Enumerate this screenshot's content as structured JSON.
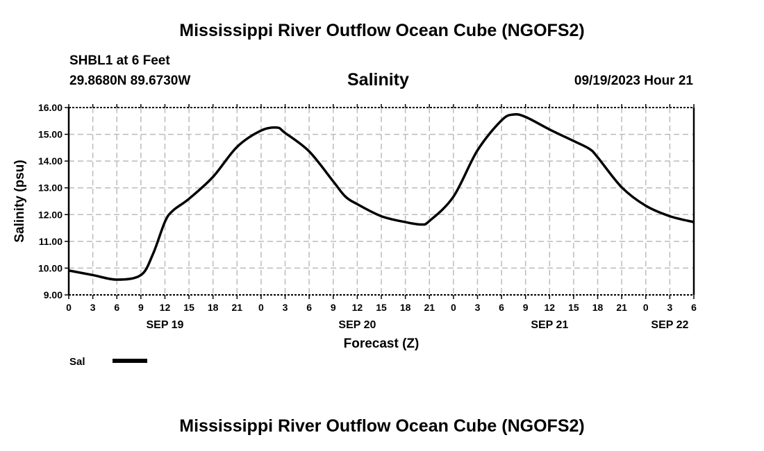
{
  "header": {
    "title": "Mississippi River Outflow Ocean Cube (NGOFS2)",
    "station": "SHBL1 at 6 Feet",
    "coords": "29.8680N  89.6730W",
    "subtitle": "Salinity",
    "datetime": "09/19/2023 Hour 21"
  },
  "footer": {
    "title": "Mississippi River Outflow Ocean Cube (NGOFS2)"
  },
  "chart_data": {
    "type": "line",
    "title": "Salinity",
    "xlabel": "Forecast (Z)",
    "ylabel": "Salinity (psu)",
    "ylim": [
      9,
      16
    ],
    "xlim": [
      0,
      78
    ],
    "yticks": [
      "9.00",
      "10.00",
      "11.00",
      "12.00",
      "13.00",
      "14.00",
      "15.00",
      "16.00"
    ],
    "xtick_labels": [
      "0",
      "3",
      "6",
      "9",
      "12",
      "15",
      "18",
      "21",
      "0",
      "3",
      "6",
      "9",
      "12",
      "15",
      "18",
      "21",
      "0",
      "3",
      "6",
      "9",
      "12",
      "15",
      "18",
      "21",
      "0",
      "3",
      "6"
    ],
    "date_labels": [
      {
        "label": "SEP 19",
        "hour": 12
      },
      {
        "label": "SEP 20",
        "hour": 36
      },
      {
        "label": "SEP 21",
        "hour": 60
      },
      {
        "label": "SEP 22",
        "hour": 75
      }
    ],
    "grid": true,
    "legend": {
      "placement": "bottom-left",
      "entries": [
        "Sal"
      ]
    },
    "series": [
      {
        "name": "Sal",
        "x_hours": [
          0,
          3,
          6,
          9,
          10.5,
          12,
          13,
          15,
          18,
          21,
          24,
          26,
          27,
          30,
          33,
          34.5,
          36,
          39,
          42,
          44,
          45,
          48,
          51,
          54,
          55.5,
          57,
          60,
          63,
          65,
          66,
          69,
          72,
          75,
          78
        ],
        "values": [
          9.91,
          9.74,
          9.57,
          9.74,
          10.52,
          11.73,
          12.15,
          12.59,
          13.41,
          14.53,
          15.14,
          15.25,
          15.05,
          14.36,
          13.24,
          12.68,
          12.39,
          11.94,
          11.72,
          11.63,
          11.76,
          12.67,
          14.4,
          15.52,
          15.74,
          15.65,
          15.18,
          14.75,
          14.45,
          14.14,
          13.02,
          12.33,
          11.94,
          11.72
        ]
      }
    ]
  }
}
